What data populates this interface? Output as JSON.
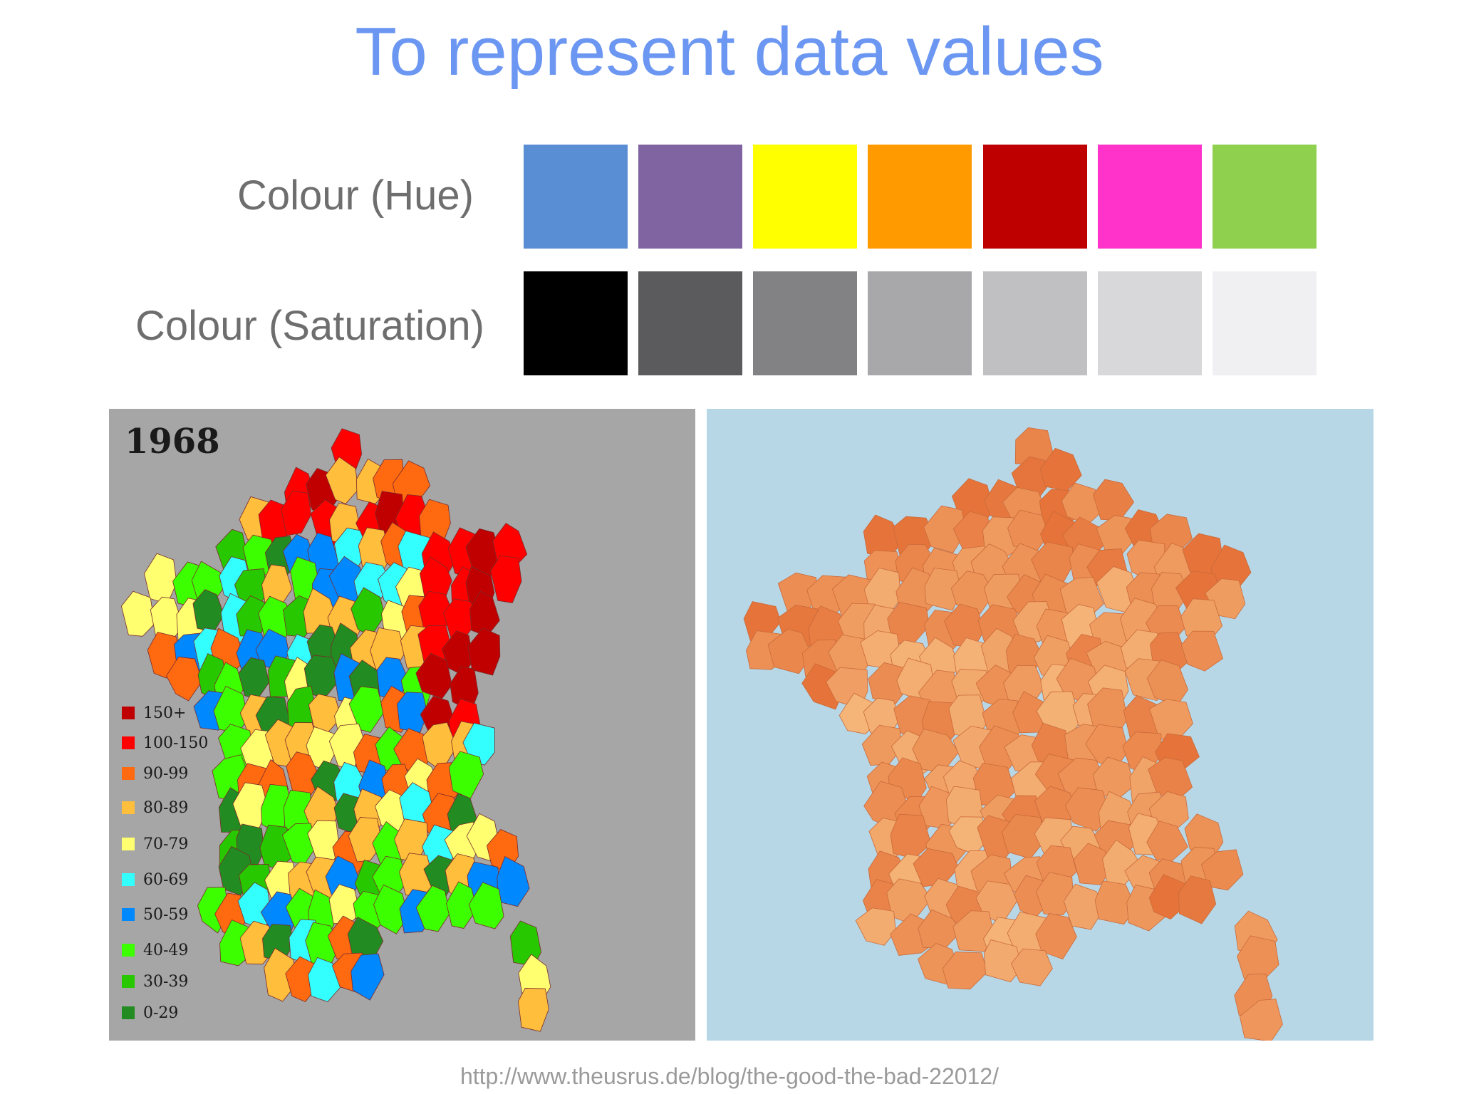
{
  "slide": {
    "title": "To represent data values",
    "title_color": "#6b96f2",
    "source_url": "http://www.theusrus.de/blog/the-good-the-bad-22012/",
    "label_color": "#6e6e6e"
  },
  "hue_row": {
    "label": "Colour (Hue)",
    "swatches": [
      "#598ed5",
      "#8064a2",
      "#ffff00",
      "#ff9a00",
      "#be0000",
      "#ff33c9",
      "#8fd14f"
    ]
  },
  "saturation_row": {
    "label": "Colour (Saturation)",
    "swatches": [
      "#000000",
      "#5b5a5d",
      "#828183",
      "#a8a7aa",
      "#c0bfc2",
      "#d8d7da",
      "#f0eff2"
    ]
  },
  "left_map": {
    "year": "1968",
    "background": "#a6a6a6",
    "legend": [
      {
        "label": "150+",
        "color": "#c00000"
      },
      {
        "label": "100-150",
        "color": "#ff0000"
      },
      {
        "label": "90-99",
        "color": "#ff6a10"
      },
      {
        "label": "80-89",
        "color": "#ffbe3c"
      },
      {
        "label": "70-79",
        "color": "#ffff70"
      },
      {
        "label": "60-69",
        "color": "#33ffff"
      },
      {
        "label": "50-59",
        "color": "#0088ff"
      },
      {
        "label": "40-49",
        "color": "#3cff00"
      },
      {
        "label": "30-39",
        "color": "#28c800"
      },
      {
        "label": "0-29",
        "color": "#228b22"
      }
    ]
  },
  "right_map": {
    "background": "#b8d7e6",
    "fill_light": "#f6b77a",
    "fill_dark": "#e5733a"
  }
}
